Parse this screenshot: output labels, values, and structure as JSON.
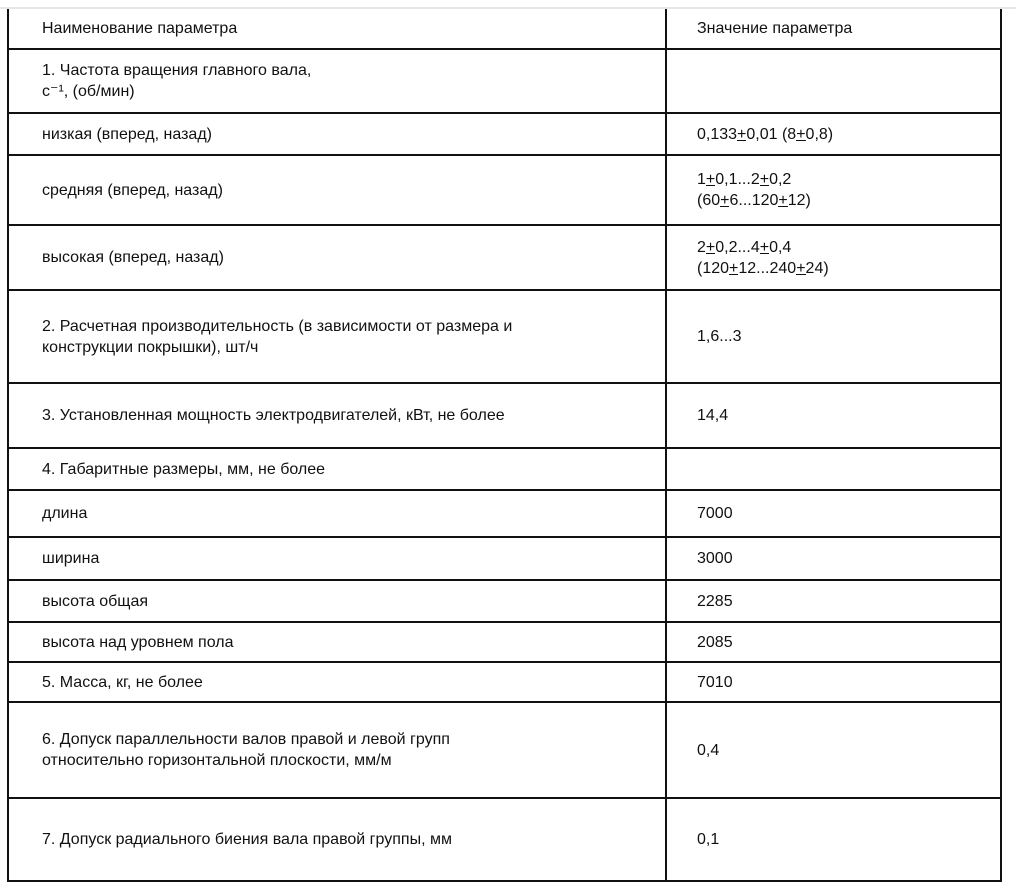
{
  "table": {
    "header": {
      "name": "Наименование параметра",
      "value": "Значение параметра"
    },
    "rows": [
      {
        "name": "1. Частота вращения главного вала,\nс⁻¹, (об/мин)",
        "value": ""
      },
      {
        "name": "низкая (вперед, назад)",
        "value": "0,133+0,01 (8+0,8)"
      },
      {
        "name": "средняя (вперед, назад)",
        "value": "1+0,1...2+0,2\n(60+6...120+12)"
      },
      {
        "name": "высокая (вперед, назад)",
        "value": "2+0,2...4+0,4\n(120+12...240+24)"
      },
      {
        "name": "2. Расчетная производительность (в зависимости от размера и\nконструкции покрышки), шт/ч",
        "value": "1,6...3"
      },
      {
        "name": "3. Установленная мощность электродвигателей, кВт, не более",
        "value": "14,4"
      },
      {
        "name": "4. Габаритные размеры, мм, не более",
        "value": ""
      },
      {
        "name": "длина",
        "value": "7000"
      },
      {
        "name": "ширина",
        "value": "3000"
      },
      {
        "name": "высота общая",
        "value": "2285"
      },
      {
        "name": "высота над уровнем пола",
        "value": "2085"
      },
      {
        "name": "5. Масса, кг, не более",
        "value": "7010"
      },
      {
        "name": "6. Допуск параллельности валов правой и левой групп\nотносительно горизонтальной плоскости, мм/м",
        "value": "0,4"
      },
      {
        "name": "7. Допуск радиального биения вала правой группы, мм",
        "value": "0,1"
      }
    ]
  }
}
